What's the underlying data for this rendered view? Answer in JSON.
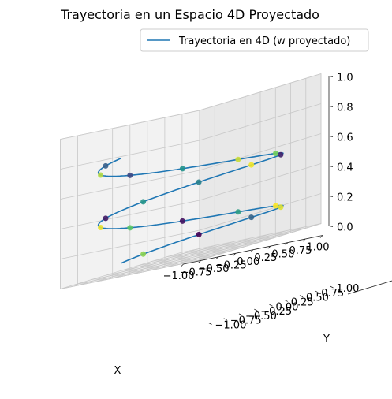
{
  "chart_data": {
    "type": "line3d",
    "title": "Trayectoria en un Espacio 4D Proyectado",
    "xlabel": "X",
    "ylabel": "Y",
    "zlabel": "",
    "xlim": [
      -1.0,
      1.0
    ],
    "ylim": [
      -1.0,
      1.0
    ],
    "zlim": [
      0.0,
      1.0
    ],
    "xticks": [
      "−1.00",
      "−0.75",
      "−0.50",
      "−0.25",
      "0.00",
      "0.25",
      "0.50",
      "0.75",
      "1.00"
    ],
    "yticks": [
      "−1.00",
      "−0.75",
      "−0.50",
      "−0.25",
      "0.00",
      "0.25",
      "0.50",
      "0.75",
      "1.00"
    ],
    "zticks": [
      "0.0",
      "0.2",
      "0.4",
      "0.6",
      "0.8",
      "1.0"
    ],
    "legend_position": "top-right",
    "grid": true,
    "series": [
      {
        "name": "Trayectoria en 4D (w proyectado)",
        "color": "#1f77b4",
        "curve": "helix",
        "turns": 2,
        "t_range": [
          0,
          12.566
        ],
        "x": "cos(t)",
        "y": "sin(t)",
        "z": "t / (4*pi)"
      }
    ],
    "markers": {
      "count": 20,
      "colormap": "viridis",
      "values": [
        0.82,
        0.0,
        0.32,
        0.95,
        1.0,
        0.55,
        0.05,
        0.73,
        0.97,
        0.08,
        0.52,
        0.43,
        0.98,
        0.1,
        0.78,
        0.92,
        0.5,
        0.22,
        0.88,
        0.3
      ]
    }
  }
}
